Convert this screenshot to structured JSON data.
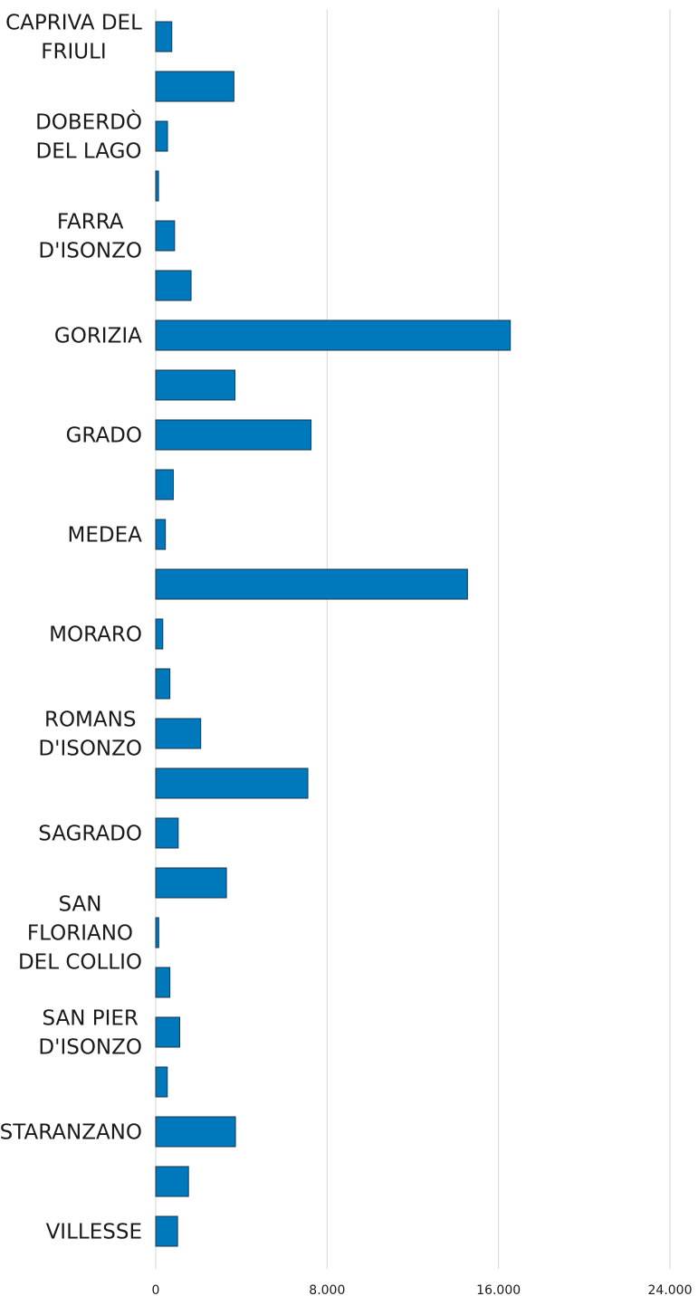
{
  "chart_data": {
    "type": "bar",
    "orientation": "horizontal",
    "bar_color": "#0079BC",
    "grid": true,
    "xlim": [
      0,
      24000
    ],
    "x_ticks": [
      0,
      8000,
      16000,
      24000
    ],
    "x_tick_labels": [
      "0",
      "8.000",
      "16.000",
      "24.000"
    ],
    "categories": [
      "CAPRIVA DEL FRIULI",
      "",
      "DOBERDÒ DEL LAGO",
      "",
      "FARRA D'ISONZO",
      "",
      "GORIZIA",
      "",
      "GRADO",
      "",
      "MEDEA",
      "",
      "MORARO",
      "",
      "ROMANS D'ISONZO",
      "",
      "SAGRADO",
      "",
      "SAN FLORIANO DEL COLLIO",
      "",
      "SAN PIER D'ISONZO",
      "",
      "STARANZANO",
      "",
      "VILLESSE"
    ],
    "category_lines": [
      [
        "CAPRIVA DEL",
        "FRIULI"
      ],
      [],
      [
        "DOBERDÒ",
        "DEL LAGO"
      ],
      [],
      [
        "FARRA",
        "D'ISONZO"
      ],
      [],
      [
        "GORIZIA"
      ],
      [],
      [
        "GRADO"
      ],
      [],
      [
        "MEDEA"
      ],
      [],
      [
        "MORARO"
      ],
      [],
      [
        "ROMANS",
        "D'ISONZO"
      ],
      [],
      [
        "SAGRADO"
      ],
      [],
      [
        "SAN",
        "FLORIANO",
        "DEL COLLIO"
      ],
      [],
      [
        "SAN PIER",
        "D'ISONZO"
      ],
      [],
      [
        "STARANZANO"
      ],
      [],
      [
        "VILLESSE"
      ]
    ],
    "values": [
      750,
      3650,
      550,
      130,
      880,
      1650,
      16550,
      3700,
      7250,
      820,
      450,
      14550,
      330,
      660,
      2100,
      7100,
      1050,
      3300,
      140,
      660,
      1120,
      540,
      3720,
      1530,
      1020
    ]
  }
}
